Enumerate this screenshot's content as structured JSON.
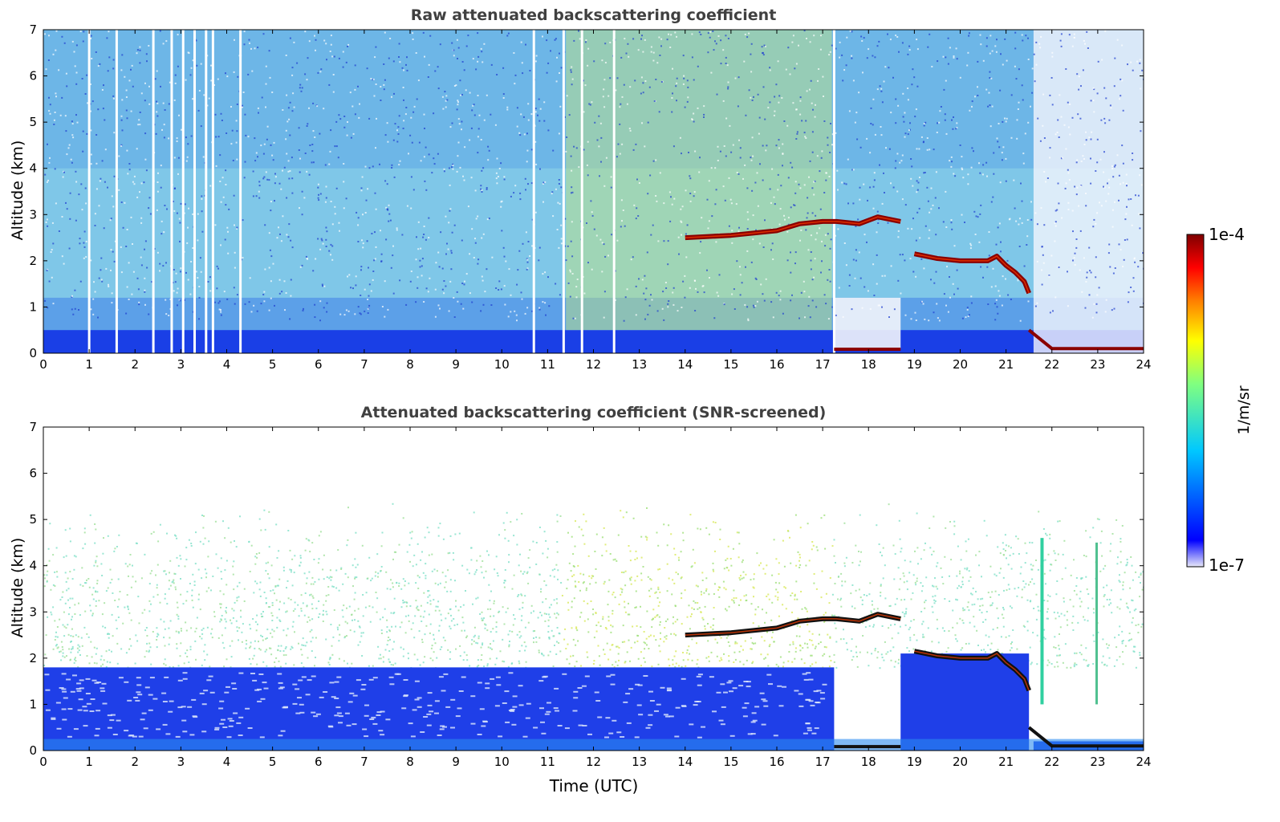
{
  "figure": {
    "colorbar": {
      "max_label": "1e-4",
      "min_label": "1e-7",
      "unit": "1/m/sr",
      "scale": "log",
      "colormap": "jet",
      "colors": [
        "#e8e8f8",
        "#0000ff",
        "#00c8ff",
        "#80ff80",
        "#ffff00",
        "#ff7f00",
        "#ff0000",
        "#7f0000"
      ]
    },
    "xlabel": "Time (UTC)"
  },
  "chart_data": [
    {
      "type": "heatmap",
      "title": "Raw attenuated backscattering coefficient",
      "ylabel": "Altitude (km)",
      "xlabel": "",
      "xlim": [
        0,
        24
      ],
      "ylim": [
        0,
        7
      ],
      "xticks": [
        "0",
        "1",
        "2",
        "3",
        "4",
        "5",
        "6",
        "7",
        "8",
        "9",
        "10",
        "11",
        "12",
        "13",
        "14",
        "15",
        "16",
        "17",
        "18",
        "19",
        "20",
        "21",
        "22",
        "23",
        "24"
      ],
      "yticks": [
        "0",
        "1",
        "2",
        "3",
        "4",
        "5",
        "6",
        "7"
      ],
      "grid": false,
      "cloud_layer_1": {
        "x": [
          14.0,
          15.0,
          16.0,
          16.5,
          17.0,
          17.3,
          17.8,
          18.2,
          18.7
        ],
        "altitude_km": [
          2.5,
          2.55,
          2.65,
          2.8,
          2.85,
          2.85,
          2.8,
          2.95,
          2.85
        ]
      },
      "cloud_layer_2": {
        "x": [
          19.0,
          19.5,
          20.0,
          20.6,
          20.8,
          21.0,
          21.2,
          21.4,
          21.5
        ],
        "altitude_km": [
          2.15,
          2.05,
          2.0,
          2.0,
          2.1,
          1.9,
          1.75,
          1.55,
          1.3
        ]
      },
      "data_gaps_utc": [
        1.0,
        1.6,
        2.4,
        2.8,
        3.05,
        3.3,
        3.55,
        3.7,
        4.3,
        10.7,
        11.35,
        11.75,
        12.45,
        17.25
      ],
      "low_level_layer_top_km": 0.5
    },
    {
      "type": "heatmap",
      "title": "Attenuated backscattering coefficient (SNR-screened)",
      "ylabel": "Altitude (km)",
      "xlabel": "Time (UTC)",
      "xlim": [
        0,
        24
      ],
      "ylim": [
        0,
        7
      ],
      "xticks": [
        "0",
        "1",
        "2",
        "3",
        "4",
        "5",
        "6",
        "7",
        "8",
        "9",
        "10",
        "11",
        "12",
        "13",
        "14",
        "15",
        "16",
        "17",
        "18",
        "19",
        "20",
        "21",
        "22",
        "23",
        "24"
      ],
      "yticks": [
        "0",
        "1",
        "2",
        "3",
        "4",
        "5",
        "6",
        "7"
      ],
      "grid": false,
      "cloud_layer_1": {
        "x": [
          14.0,
          15.0,
          16.0,
          16.5,
          17.0,
          17.3,
          17.8,
          18.2,
          18.7
        ],
        "altitude_km": [
          2.5,
          2.55,
          2.65,
          2.8,
          2.85,
          2.85,
          2.8,
          2.95,
          2.85
        ]
      },
      "cloud_layer_2": {
        "x": [
          19.0,
          19.5,
          20.0,
          20.6,
          20.8,
          21.0,
          21.2,
          21.4,
          21.5
        ],
        "altitude_km": [
          2.15,
          2.05,
          2.0,
          2.0,
          2.1,
          1.9,
          1.75,
          1.55,
          1.3
        ]
      },
      "boundary_layer_top_km": 1.8
    }
  ]
}
